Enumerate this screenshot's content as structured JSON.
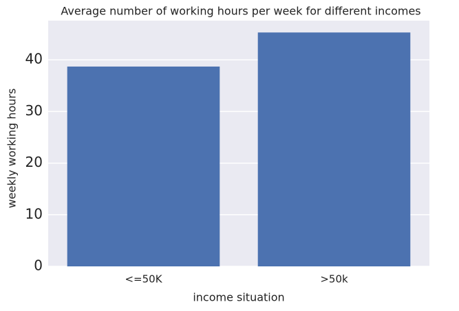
{
  "chart_data": {
    "type": "bar",
    "title": "Average number of working hours per week for different incomes",
    "xlabel": "income situation",
    "ylabel": "weekly working hours",
    "categories": [
      "<=50K",
      ">50k"
    ],
    "values": [
      38.7,
      45.3
    ],
    "color": "#4c72b0",
    "ylim": [
      0,
      47.6
    ],
    "yticks": [
      0,
      10,
      20,
      30,
      40
    ],
    "grid": true
  }
}
